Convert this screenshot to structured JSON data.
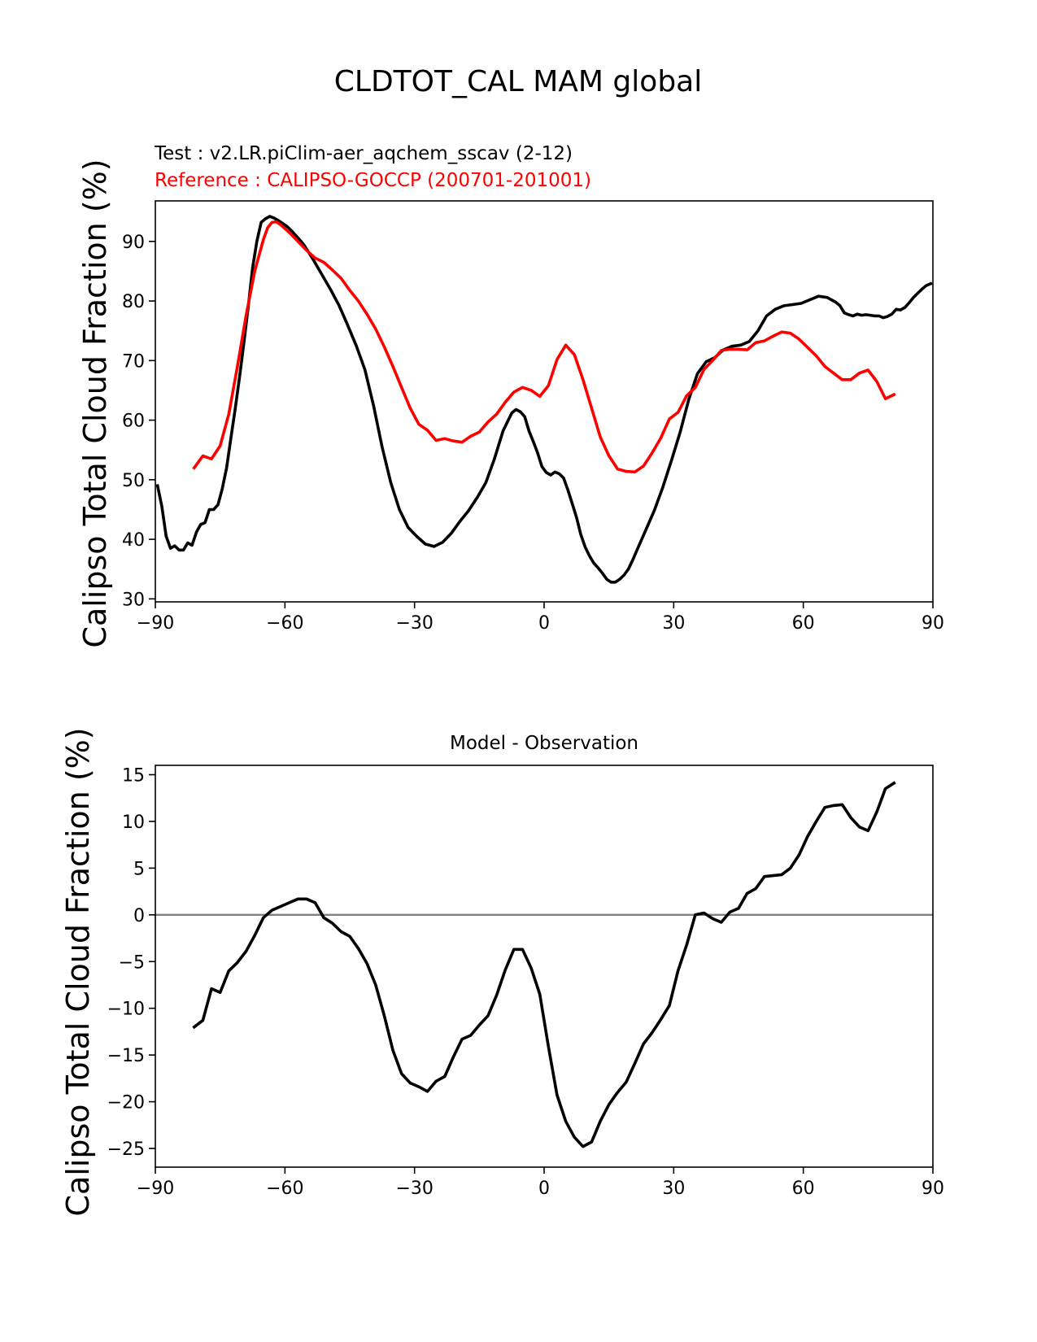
{
  "figure": {
    "title": "CLDTOT_CAL MAM global"
  },
  "chart_data": [
    {
      "type": "line",
      "test_label": "Test : v2.LR.piClim-aer_aqchem_sscav (2-12)",
      "reference_label": "Reference : CALIPSO-GOCCP (200701-201001)",
      "xlabel": "",
      "ylabel": "Calipso Total Cloud Fraction (%)",
      "xlim": [
        -90,
        90
      ],
      "ylim": [
        29.5,
        96.8
      ],
      "xticks": [
        -90,
        -60,
        -30,
        0,
        30,
        60,
        90
      ],
      "xtick_labels": [
        "−90",
        "−60",
        "−30",
        "0",
        "30",
        "60",
        "90"
      ],
      "yticks": [
        30,
        40,
        50,
        60,
        70,
        80,
        90
      ],
      "ytick_labels": [
        "30",
        "40",
        "50",
        "60",
        "70",
        "80",
        "90"
      ],
      "series": [
        {
          "name": "Test",
          "color": "#000000",
          "x": [
            -89.5,
            -88.5,
            -87.5,
            -86.5,
            -85.5,
            -84.5,
            -83.5,
            -82.5,
            -81.5,
            -80.5,
            -79.5,
            -78.5,
            -77.5,
            -76.5,
            -75.5,
            -74.5,
            -73.5,
            -72.5,
            -71.5,
            -70.5,
            -69.5,
            -68.5,
            -67.5,
            -66.5,
            -65.5,
            -64.5,
            -63.5,
            -62.5,
            -61.5,
            -60.5,
            -59.5,
            -58.5,
            -57.5,
            -56.5,
            -55.5,
            -53.5,
            -51.5,
            -49.5,
            -47.5,
            -45.5,
            -43.5,
            -41.5,
            -39.5,
            -37.5,
            -35.5,
            -33.5,
            -31.5,
            -29.5,
            -27.5,
            -25.5,
            -23.5,
            -21.5,
            -19.5,
            -17.5,
            -15.5,
            -13.5,
            -11.5,
            -9.5,
            -7.5,
            -6.5,
            -5.5,
            -4.5,
            -3.5,
            -2.5,
            -1.5,
            -0.5,
            0.5,
            1.5,
            2.5,
            3.5,
            4.5,
            5.5,
            6.5,
            7.5,
            8.5,
            9.5,
            10.5,
            11.5,
            12.5,
            13.5,
            14.5,
            15.5,
            16.5,
            17.5,
            18.5,
            19.5,
            20.5,
            21.5,
            23.5,
            25.5,
            27.5,
            29.5,
            31.5,
            33.5,
            35.5,
            37.5,
            39.5,
            41.5,
            43.5,
            45.5,
            47.5,
            49.5,
            51.5,
            53.5,
            55.5,
            57.5,
            59.5,
            61.5,
            63.5,
            65.5,
            67.5,
            68.5,
            69.5,
            70.5,
            71.5,
            72.5,
            73.5,
            74.5,
            75.5,
            76.5,
            77.5,
            78.5,
            79.5,
            80.5,
            81.5,
            82.5,
            83.5,
            84.5,
            85.5,
            86.5,
            87.5,
            88.5,
            89.5
          ],
          "values": [
            49,
            45.5,
            40.5,
            38.5,
            38.9,
            38.2,
            38.2,
            39.4,
            39,
            41.2,
            42.5,
            42.8,
            45,
            45,
            45.8,
            48.5,
            52,
            57,
            62,
            67.3,
            73,
            79,
            85.5,
            90,
            93.2,
            93.8,
            94.2,
            93.9,
            93.5,
            93,
            92.5,
            91.8,
            91,
            90.2,
            89.3,
            87,
            84.5,
            82,
            79.3,
            76,
            72.5,
            68.5,
            62.5,
            55.5,
            49.5,
            45,
            42,
            40.5,
            39.2,
            38.8,
            39.5,
            41,
            43,
            44.8,
            47,
            49.5,
            53.5,
            58.2,
            61.2,
            61.8,
            61.4,
            60.6,
            58.2,
            56.4,
            54.5,
            52.2,
            51.2,
            50.8,
            51.3,
            51,
            50.3,
            48.3,
            46,
            43.7,
            40.8,
            38.7,
            37.2,
            36,
            35.2,
            34.3,
            33.3,
            32.8,
            32.8,
            33.3,
            34,
            35,
            36.5,
            38.2,
            41.5,
            44.8,
            48.8,
            53.3,
            58,
            63.5,
            67.8,
            69.8,
            70.5,
            71.8,
            72.4,
            72.6,
            73.2,
            75,
            77.5,
            78.6,
            79.2,
            79.4,
            79.6,
            80.2,
            80.8,
            80.6,
            79.8,
            79.2,
            78,
            77.7,
            77.5,
            77.8,
            77.6,
            77.7,
            77.6,
            77.5,
            77.5,
            77.2,
            77.4,
            77.8,
            78.6,
            78.5,
            78.9,
            79.7,
            80.6,
            81.3,
            82,
            82.6,
            82.9
          ]
        },
        {
          "name": "Reference",
          "color": "#ff0000",
          "x": [
            -81,
            -79,
            -77,
            -75,
            -73,
            -71,
            -69,
            -67,
            -65,
            -64,
            -63,
            -62,
            -61,
            -59,
            -57,
            -55,
            -53,
            -51,
            -49,
            -47,
            -45,
            -43,
            -41,
            -39,
            -37,
            -35,
            -33,
            -31,
            -29,
            -27,
            -25,
            -23,
            -21,
            -19,
            -17,
            -15,
            -13,
            -11,
            -9,
            -7,
            -5,
            -3,
            -1,
            1,
            3,
            5,
            7,
            9,
            11,
            13,
            15,
            17,
            19,
            21,
            23,
            25,
            27,
            29,
            31,
            33,
            35,
            37,
            39,
            41,
            43,
            45,
            47,
            49,
            51,
            53,
            55,
            57,
            59,
            61,
            63,
            65,
            67,
            69,
            71,
            73,
            75,
            77,
            79,
            81
          ],
          "values": [
            52,
            54,
            53.5,
            55.7,
            61,
            69,
            77.5,
            85,
            90.3,
            92.3,
            93.2,
            93.3,
            92.8,
            91.5,
            90,
            88.5,
            87.2,
            86.5,
            85.2,
            83.8,
            81.8,
            80,
            77.8,
            75.3,
            72.3,
            69,
            65.5,
            62,
            59.3,
            58.3,
            56.6,
            56.9,
            56.5,
            56.3,
            57.3,
            58,
            59.7,
            61,
            63,
            64.7,
            65.5,
            65,
            64,
            65.8,
            70.2,
            72.6,
            71,
            66.8,
            62,
            57.2,
            54,
            51.8,
            51.4,
            51.3,
            52.3,
            54.5,
            57,
            60.2,
            61.3,
            64.1,
            65.5,
            68.5,
            70,
            71.7,
            71.9,
            71.9,
            71.8,
            73,
            73.3,
            74.1,
            74.8,
            74.6,
            73.6,
            72.2,
            70.8,
            69,
            67.9,
            66.8,
            66.8,
            67.9,
            68.4,
            66.5,
            63.6,
            64.3
          ]
        }
      ]
    },
    {
      "type": "line",
      "title": "Model - Observation",
      "xlabel": "",
      "ylabel": "Calipso Total Cloud Fraction (%)",
      "xlim": [
        -90,
        90
      ],
      "ylim": [
        -27,
        16
      ],
      "xticks": [
        -90,
        -60,
        -30,
        0,
        30,
        60,
        90
      ],
      "xtick_labels": [
        "−90",
        "−60",
        "−30",
        "0",
        "30",
        "60",
        "90"
      ],
      "yticks": [
        -25,
        -20,
        -15,
        -10,
        -5,
        0,
        5,
        10,
        15
      ],
      "ytick_labels": [
        "−25",
        "−20",
        "−15",
        "−10",
        "−5",
        "0",
        "5",
        "10",
        "15"
      ],
      "zero_line": 0,
      "series": [
        {
          "name": "Model - Observation",
          "color": "#000000",
          "x": [
            -81,
            -79,
            -77,
            -75,
            -73,
            -71,
            -69,
            -67,
            -65,
            -63,
            -61,
            -59,
            -57,
            -55,
            -53,
            -51,
            -49,
            -47,
            -45,
            -43,
            -41,
            -39,
            -37,
            -35,
            -33,
            -31,
            -29,
            -27,
            -25,
            -23,
            -21,
            -19,
            -17,
            -15,
            -13,
            -11,
            -9,
            -7,
            -5,
            -3,
            -1,
            1,
            3,
            5,
            7,
            9,
            11,
            13,
            15,
            17,
            19,
            21,
            23,
            25,
            27,
            29,
            31,
            33,
            35,
            37,
            39,
            41,
            43,
            45,
            47,
            49,
            51,
            53,
            55,
            57,
            59,
            61,
            63,
            65,
            67,
            69,
            71,
            73,
            75,
            77,
            79,
            81
          ],
          "values": [
            -12,
            -11.3,
            -7.9,
            -8.3,
            -6,
            -5.1,
            -3.9,
            -2.2,
            -0.3,
            0.5,
            0.9,
            1.3,
            1.7,
            1.7,
            1.3,
            -0.3,
            -0.9,
            -1.8,
            -2.3,
            -3.6,
            -5.2,
            -7.5,
            -10.8,
            -14.5,
            -17,
            -18,
            -18.4,
            -18.9,
            -17.8,
            -17.3,
            -15.2,
            -13.3,
            -12.9,
            -11.8,
            -10.8,
            -8.6,
            -5.9,
            -3.7,
            -3.7,
            -5.7,
            -8.5,
            -14.1,
            -19.3,
            -22.1,
            -23.8,
            -24.8,
            -24.3,
            -22.1,
            -20.3,
            -19,
            -17.9,
            -15.9,
            -13.8,
            -12.6,
            -11.2,
            -9.7,
            -6,
            -3.2,
            0,
            0.2,
            -0.4,
            -0.8,
            0.3,
            0.7,
            2.3,
            2.8,
            4.1,
            4.2,
            4.3,
            5,
            6.4,
            8.4,
            10,
            11.5,
            11.7,
            11.8,
            10.4,
            9.4,
            9,
            11,
            13.5,
            14.1
          ]
        }
      ]
    }
  ]
}
